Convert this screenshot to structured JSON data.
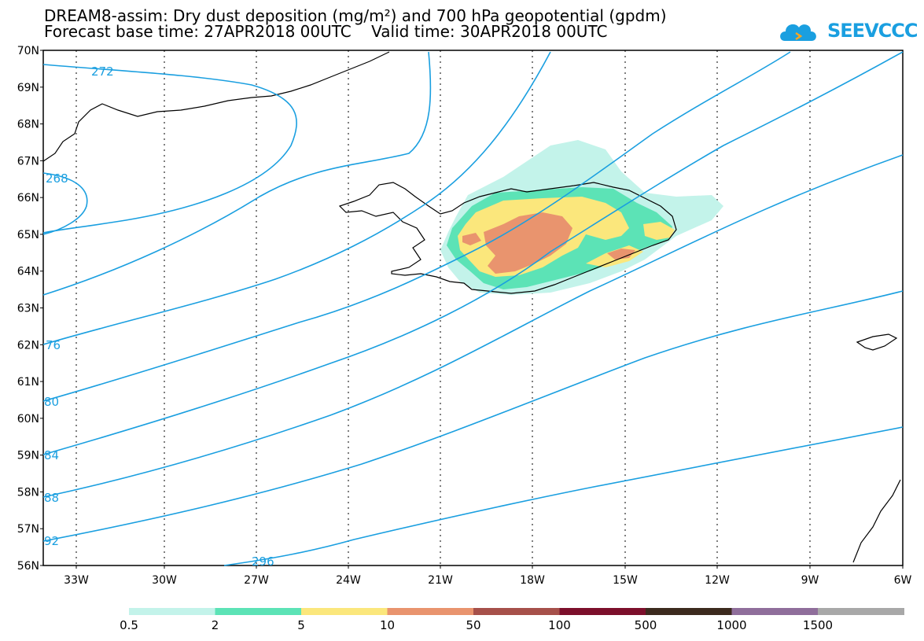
{
  "title": {
    "line1": "DREAM8-assim: Dry dust deposition (mg/m²) and 700 hPa geopotential (gpdm)",
    "line2": "Forecast base time: 27APR2018 00UTC    Valid time: 30APR2018 00UTC"
  },
  "logo": {
    "text": "SEEVCCC",
    "icon": "cloud-icon",
    "color": "#1a9fe0"
  },
  "axes": {
    "lat_labels": [
      "70N",
      "69N",
      "68N",
      "67N",
      "66N",
      "65N",
      "64N",
      "63N",
      "62N",
      "61N",
      "60N",
      "59N",
      "58N",
      "57N",
      "56N"
    ],
    "lon_labels": [
      "33W",
      "30W",
      "27W",
      "24W",
      "21W",
      "18W",
      "15W",
      "12W",
      "9W",
      "6W"
    ]
  },
  "contours": {
    "color": "#1a9fe0",
    "labels": [
      "272",
      "268",
      "76",
      "80",
      "84",
      "88",
      "92",
      "296"
    ]
  },
  "legend": {
    "colors": [
      "#c3f3ea",
      "#5ce3b6",
      "#fbe77c",
      "#e9946e",
      "#a6504a",
      "#7c0f2b",
      "#3c2a1e",
      "#8f6e9b",
      "#a8a8a8"
    ],
    "ticks": [
      "0.5",
      "2",
      "5",
      "10",
      "50",
      "100",
      "500",
      "1000",
      "1500"
    ]
  }
}
